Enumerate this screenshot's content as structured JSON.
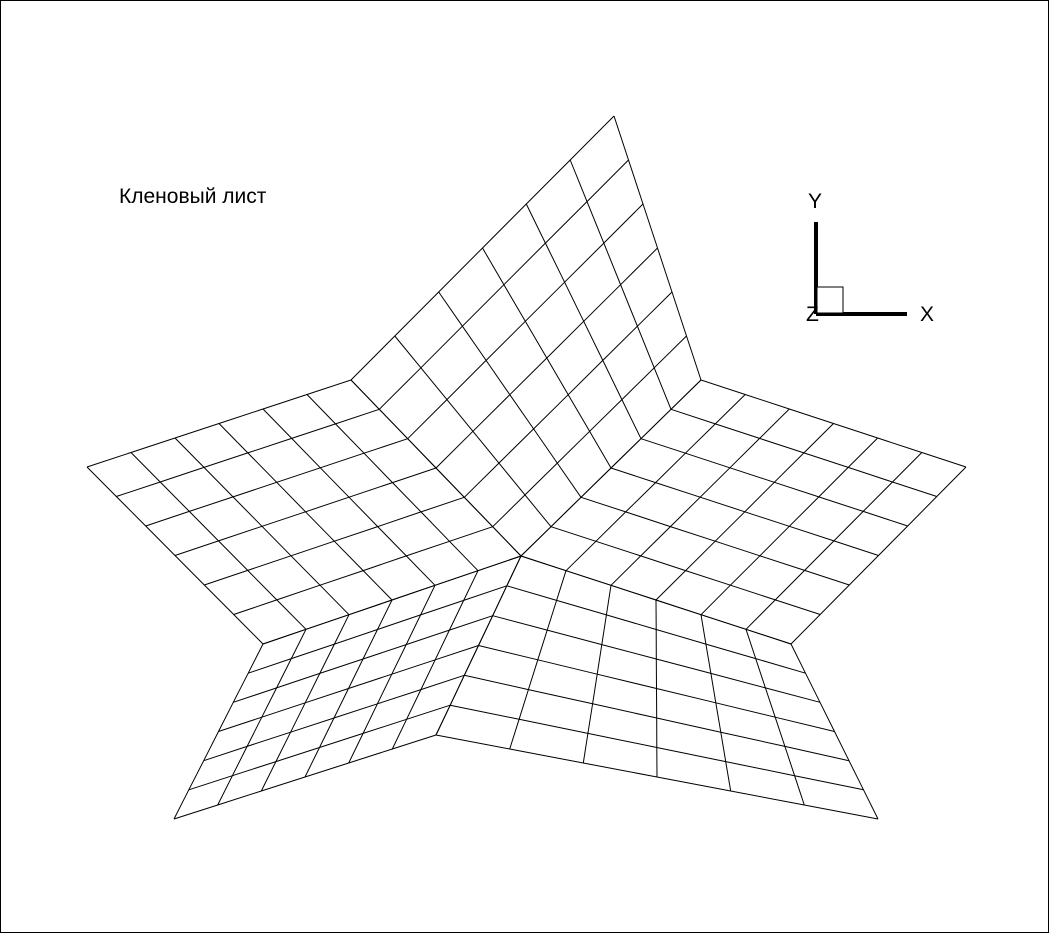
{
  "title": "Кленовый лист",
  "axes": {
    "x": "X",
    "y": "Y",
    "z": "Z"
  },
  "colors": {
    "line": "#000000",
    "background": "#ffffff"
  }
}
